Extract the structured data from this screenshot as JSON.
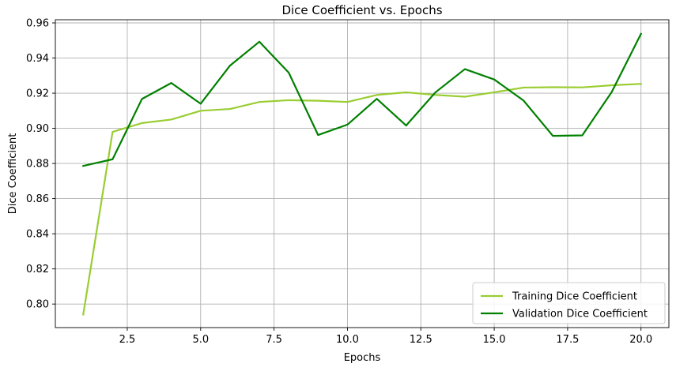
{
  "chart_data": {
    "type": "line",
    "title": "Dice Coefficient vs. Epochs",
    "xlabel": "Epochs",
    "ylabel": "Dice Coefficient",
    "xlim": [
      0.05,
      20.95
    ],
    "ylim": [
      0.7866,
      0.9618
    ],
    "xticks": [
      2.5,
      5.0,
      7.5,
      10.0,
      12.5,
      15.0,
      17.5,
      20.0
    ],
    "xtick_labels": [
      "2.5",
      "5.0",
      "7.5",
      "10.0",
      "12.5",
      "15.0",
      "17.5",
      "20.0"
    ],
    "yticks": [
      0.8,
      0.82,
      0.84,
      0.86,
      0.88,
      0.9,
      0.92,
      0.94,
      0.96
    ],
    "ytick_labels": [
      "0.80",
      "0.82",
      "0.84",
      "0.86",
      "0.88",
      "0.90",
      "0.92",
      "0.94",
      "0.96"
    ],
    "grid": true,
    "legend_position": "bottom-right",
    "x": [
      1,
      2,
      3,
      4,
      5,
      6,
      7,
      8,
      9,
      10,
      11,
      12,
      13,
      14,
      15,
      16,
      17,
      18,
      19,
      20
    ],
    "series": [
      {
        "name": "Training Dice Coefficient",
        "color": "#9acd32",
        "values": [
          0.794,
          0.898,
          0.903,
          0.905,
          0.91,
          0.911,
          0.915,
          0.916,
          0.9157,
          0.915,
          0.919,
          0.9205,
          0.919,
          0.918,
          0.9205,
          0.9232,
          0.9234,
          0.9233,
          0.9245,
          0.9253
        ]
      },
      {
        "name": "Validation Dice Coefficient",
        "color": "#008000",
        "values": [
          0.8786,
          0.8824,
          0.9167,
          0.9258,
          0.914,
          0.9357,
          0.9493,
          0.9317,
          0.8962,
          0.9021,
          0.9168,
          0.9016,
          0.9205,
          0.9337,
          0.9278,
          0.9158,
          0.8957,
          0.896,
          0.9206,
          0.9538
        ]
      }
    ]
  }
}
